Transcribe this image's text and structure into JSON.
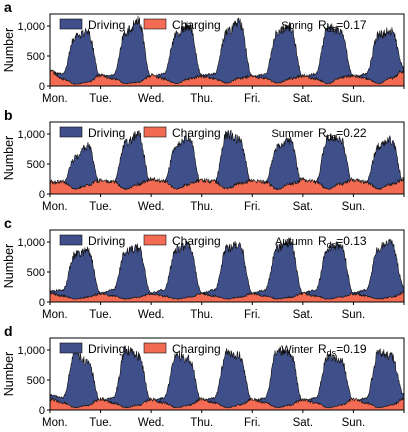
{
  "colors": {
    "driving": "#3f4f8a",
    "charging": "#f26b52",
    "axis": "#000000"
  },
  "chart_data": [
    {
      "type": "area",
      "panel_label": "a",
      "season": "Spring",
      "r_label": "R",
      "r_sub": "ds",
      "r_value": "=0.17",
      "ylabel": "Number",
      "yticks": [
        0,
        500,
        1000
      ],
      "ytick_labels": [
        "0",
        "500",
        "1,000"
      ],
      "ylim": [
        0,
        1200
      ],
      "xticks": [
        "Mon.",
        "Tue.",
        "Wed.",
        "Thu.",
        "Fri.",
        "Sat.",
        "Sun."
      ],
      "legend": [
        "Driving",
        "Charging"
      ],
      "x": [
        "Mon 00:00",
        "Mon 06:00",
        "Mon 12:00",
        "Mon 18:00",
        "Tue 00:00",
        "Tue 06:00",
        "Tue 12:00",
        "Tue 18:00",
        "Wed 00:00",
        "Wed 06:00",
        "Wed 12:00",
        "Wed 18:00",
        "Thu 00:00",
        "Thu 06:00",
        "Thu 12:00",
        "Thu 18:00",
        "Fri 00:00",
        "Fri 06:00",
        "Fri 12:00",
        "Fri 18:00",
        "Sat 00:00",
        "Sat 06:00",
        "Sat 12:00",
        "Sat 18:00",
        "Sun 00:00",
        "Sun 06:00",
        "Sun 12:00",
        "Sun 18:00",
        "Mon 00:00"
      ],
      "series": [
        {
          "name": "Driving",
          "values": [
            250,
            200,
            820,
            900,
            150,
            180,
            900,
            1080,
            150,
            200,
            880,
            1000,
            180,
            200,
            900,
            1050,
            160,
            190,
            900,
            1000,
            150,
            200,
            1000,
            900,
            150,
            200,
            850,
            920,
            300
          ]
        },
        {
          "name": "Charging",
          "values": [
            250,
            120,
            30,
            60,
            180,
            120,
            40,
            60,
            180,
            120,
            40,
            120,
            170,
            120,
            50,
            130,
            170,
            120,
            50,
            120,
            170,
            120,
            40,
            140,
            170,
            120,
            40,
            130,
            260
          ]
        }
      ]
    },
    {
      "type": "area",
      "panel_label": "b",
      "season": "Summer",
      "r_label": "R",
      "r_sub": "ds",
      "r_value": "=0.22",
      "ylabel": "Number",
      "yticks": [
        0,
        500,
        1000
      ],
      "ytick_labels": [
        "0",
        "500",
        "1,000"
      ],
      "ylim": [
        0,
        1200
      ],
      "xticks": [
        "Mon.",
        "Tue.",
        "Wed.",
        "Thu.",
        "Fri.",
        "Sat.",
        "Sun."
      ],
      "legend": [
        "Driving",
        "Charging"
      ],
      "x": [
        "Mon 00:00",
        "Mon 06:00",
        "Mon 12:00",
        "Mon 18:00",
        "Tue 00:00",
        "Tue 06:00",
        "Tue 12:00",
        "Tue 18:00",
        "Wed 00:00",
        "Wed 06:00",
        "Wed 12:00",
        "Wed 18:00",
        "Thu 00:00",
        "Thu 06:00",
        "Thu 12:00",
        "Thu 18:00",
        "Fri 00:00",
        "Fri 06:00",
        "Fri 12:00",
        "Fri 18:00",
        "Sat 00:00",
        "Sat 06:00",
        "Sat 12:00",
        "Sat 18:00",
        "Sun 00:00",
        "Sun 06:00",
        "Sun 12:00",
        "Sun 18:00",
        "Mon 00:00"
      ],
      "series": [
        {
          "name": "Driving",
          "values": [
            200,
            180,
            600,
            800,
            150,
            200,
            850,
            1000,
            160,
            200,
            800,
            950,
            150,
            200,
            1000,
            900,
            150,
            200,
            800,
            900,
            150,
            200,
            950,
            900,
            150,
            200,
            800,
            900,
            200
          ]
        },
        {
          "name": "Charging",
          "values": [
            200,
            200,
            80,
            150,
            230,
            200,
            80,
            160,
            250,
            220,
            80,
            170,
            230,
            210,
            90,
            180,
            230,
            200,
            80,
            170,
            240,
            200,
            80,
            170,
            240,
            200,
            80,
            160,
            260
          ]
        }
      ]
    },
    {
      "type": "area",
      "panel_label": "c",
      "season": "Autumn",
      "r_label": "R",
      "r_sub": "ds",
      "r_value": "=0.13",
      "ylabel": "Number",
      "yticks": [
        0,
        500,
        1000
      ],
      "ytick_labels": [
        "0",
        "500",
        "1,000"
      ],
      "ylim": [
        0,
        1200
      ],
      "xticks": [
        "Mon.",
        "Tue.",
        "Wed.",
        "Thu.",
        "Fri.",
        "Sat.",
        "Sun."
      ],
      "legend": [
        "Driving",
        "Charging"
      ],
      "x": [
        "Mon 00:00",
        "Mon 06:00",
        "Mon 12:00",
        "Mon 18:00",
        "Tue 00:00",
        "Tue 06:00",
        "Tue 12:00",
        "Tue 18:00",
        "Wed 00:00",
        "Wed 06:00",
        "Wed 12:00",
        "Wed 18:00",
        "Thu 00:00",
        "Thu 06:00",
        "Thu 12:00",
        "Thu 18:00",
        "Fri 00:00",
        "Fri 06:00",
        "Fri 12:00",
        "Fri 18:00",
        "Sat 00:00",
        "Sat 06:00",
        "Sat 12:00",
        "Sat 18:00",
        "Sun 00:00",
        "Sun 06:00",
        "Sun 12:00",
        "Sun 18:00",
        "Mon 00:00"
      ],
      "series": [
        {
          "name": "Driving",
          "values": [
            180,
            200,
            800,
            850,
            150,
            200,
            850,
            900,
            150,
            200,
            880,
            950,
            150,
            200,
            900,
            950,
            150,
            200,
            900,
            1000,
            150,
            200,
            900,
            950,
            150,
            200,
            900,
            1000,
            250
          ]
        },
        {
          "name": "Charging",
          "values": [
            150,
            100,
            50,
            80,
            140,
            100,
            50,
            80,
            140,
            100,
            50,
            80,
            140,
            100,
            50,
            80,
            140,
            100,
            50,
            80,
            140,
            100,
            50,
            80,
            140,
            100,
            50,
            80,
            150
          ]
        }
      ]
    },
    {
      "type": "area",
      "panel_label": "d",
      "season": "Winter",
      "r_label": "R",
      "r_sub": "ds",
      "r_value": "=0.19",
      "ylabel": "Number",
      "yticks": [
        0,
        500,
        1000
      ],
      "ytick_labels": [
        "0",
        "500",
        "1,000"
      ],
      "ylim": [
        0,
        1200
      ],
      "xticks": [
        "Mon.",
        "Tue.",
        "Wed.",
        "Thu.",
        "Fri.",
        "Sat.",
        "Sun."
      ],
      "legend": [
        "Driving",
        "Charging"
      ],
      "x": [
        "Mon 00:00",
        "Mon 06:00",
        "Mon 12:00",
        "Mon 18:00",
        "Tue 00:00",
        "Tue 06:00",
        "Tue 12:00",
        "Tue 18:00",
        "Wed 00:00",
        "Wed 06:00",
        "Wed 12:00",
        "Wed 18:00",
        "Thu 00:00",
        "Thu 06:00",
        "Thu 12:00",
        "Thu 18:00",
        "Fri 00:00",
        "Fri 06:00",
        "Fri 12:00",
        "Fri 18:00",
        "Sat 00:00",
        "Sat 06:00",
        "Sat 12:00",
        "Sat 18:00",
        "Sun 00:00",
        "Sun 06:00",
        "Sun 12:00",
        "Sun 18:00",
        "Mon 00:00"
      ],
      "series": [
        {
          "name": "Driving",
          "values": [
            250,
            200,
            950,
            800,
            150,
            200,
            1000,
            900,
            150,
            200,
            900,
            850,
            150,
            200,
            950,
            900,
            150,
            200,
            1000,
            950,
            150,
            200,
            900,
            850,
            150,
            200,
            950,
            900,
            250
          ]
        },
        {
          "name": "Charging",
          "values": [
            180,
            120,
            40,
            80,
            180,
            120,
            40,
            80,
            180,
            120,
            40,
            80,
            180,
            120,
            40,
            80,
            180,
            120,
            40,
            80,
            180,
            120,
            40,
            80,
            180,
            120,
            40,
            80,
            180
          ]
        }
      ]
    }
  ]
}
